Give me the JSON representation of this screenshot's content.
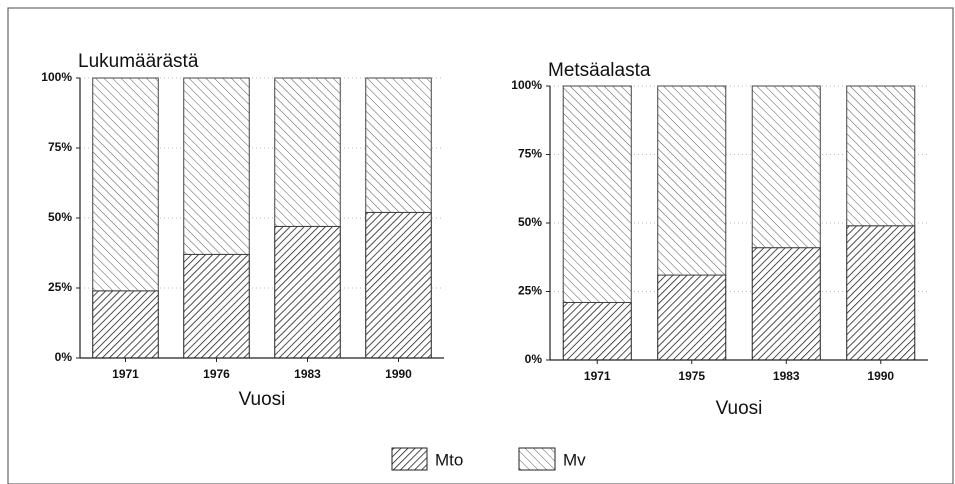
{
  "chart_data": [
    {
      "type": "bar",
      "stacked": true,
      "title": "Lukumäärästä",
      "x_label": "Vuosi",
      "categories": [
        "1971",
        "1976",
        "1983",
        "1990"
      ],
      "series": [
        {
          "name": "Mto",
          "color": "#222222",
          "values": [
            24,
            37,
            47,
            52
          ]
        },
        {
          "name": "Mv",
          "color": "#444444",
          "values": [
            76,
            63,
            53,
            48
          ]
        }
      ],
      "ylim": [
        0,
        100
      ],
      "yticks": [
        {
          "value": 0,
          "label": "0%"
        },
        {
          "value": 25,
          "label": "25%"
        },
        {
          "value": 50,
          "label": "50%"
        },
        {
          "value": 75,
          "label": "75%"
        },
        {
          "value": 100,
          "label": "100%"
        }
      ],
      "grid": true
    },
    {
      "type": "bar",
      "stacked": true,
      "title": "Metsäalasta",
      "x_label": "Vuosi",
      "categories": [
        "1971",
        "1975",
        "1983",
        "1990"
      ],
      "series": [
        {
          "name": "Mto",
          "color": "#222222",
          "values": [
            21,
            31,
            41,
            49
          ]
        },
        {
          "name": "Mv",
          "color": "#444444",
          "values": [
            79,
            69,
            59,
            51
          ]
        }
      ],
      "ylim": [
        0,
        100
      ],
      "yticks": [
        {
          "value": 0,
          "label": "0%"
        },
        {
          "value": 25,
          "label": "25%"
        },
        {
          "value": 50,
          "label": "50%"
        },
        {
          "value": 75,
          "label": "75%"
        },
        {
          "value": 100,
          "label": "100%"
        }
      ],
      "grid": true
    }
  ]
}
